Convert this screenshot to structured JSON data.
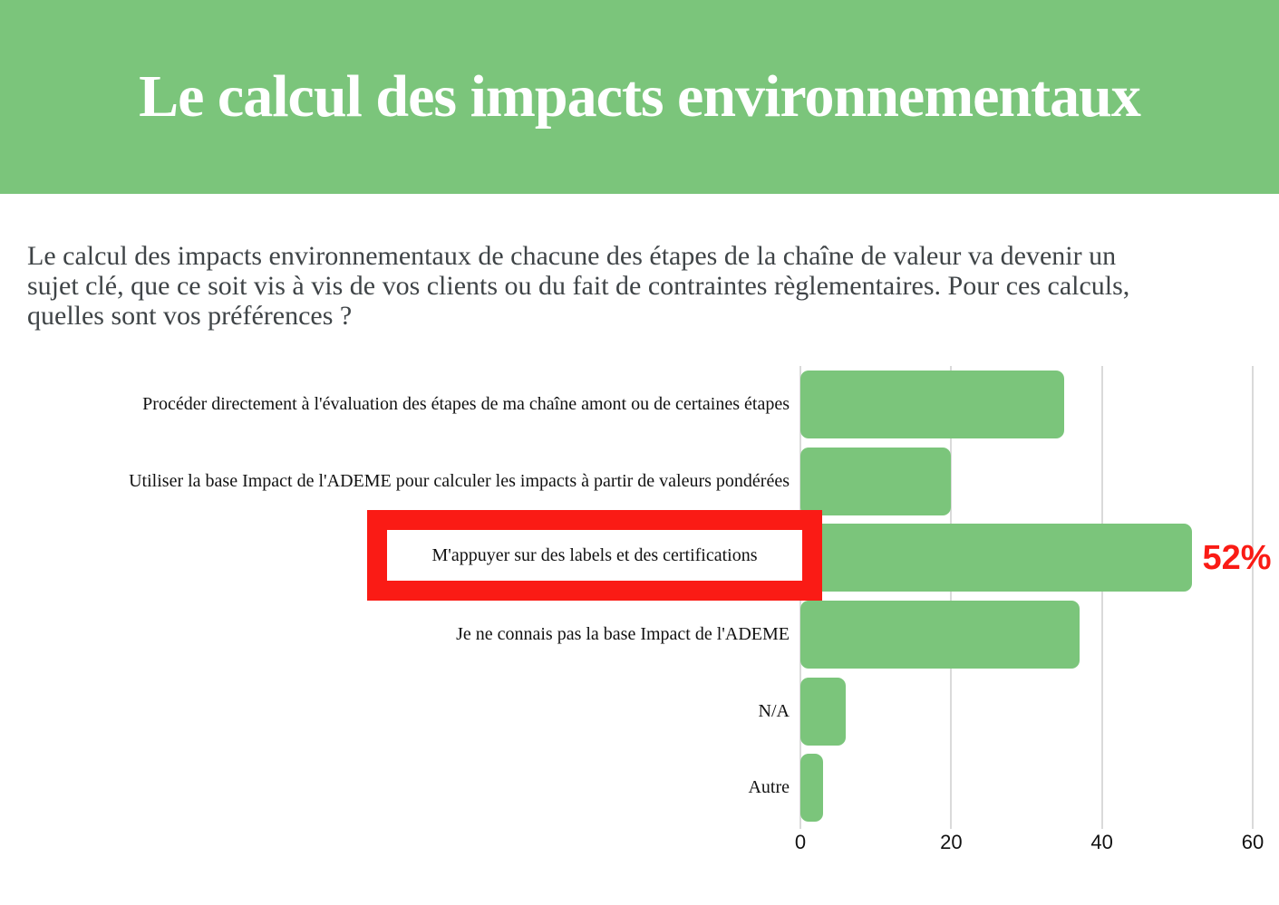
{
  "banner": {
    "title": "Le calcul des impacts environnementaux",
    "bg_color": "#7BC57B",
    "text_color": "#FFFFFF"
  },
  "intro": {
    "text": "Le calcul des impacts environnementaux de chacune des étapes de la chaîne de valeur va devenir un sujet clé, que ce soit vis à vis de vos clients ou du fait de contraintes règlementaires. Pour ces calculs, quelles sont vos préférences ?",
    "text_color": "#3F4447"
  },
  "chart_data": {
    "type": "bar",
    "orientation": "horizontal",
    "title": "",
    "xlabel": "",
    "ylabel": "",
    "categories": [
      "Procéder directement à l'évaluation des étapes de ma chaîne amont ou de certaines étapes",
      "Utiliser la base Impact de l'ADEME pour calculer les impacts à partir de valeurs pondérées",
      "M'appuyer sur des labels et des certifications",
      "Je ne connais pas la base Impact de l'ADEME",
      "N/A",
      "Autre"
    ],
    "values": [
      35,
      20,
      52,
      37,
      6,
      3
    ],
    "unit": "percent",
    "xlim": [
      0,
      60
    ],
    "x_ticks": [
      "0",
      "20",
      "40",
      "60"
    ],
    "grid": true,
    "legend": "none",
    "bar_color": "#7BC57B",
    "gridline_color": "#DADADA",
    "highlight": {
      "index": 2,
      "annotation": "52%",
      "box_color": "#FA1B15",
      "annotation_color": "#FA1B15"
    }
  }
}
